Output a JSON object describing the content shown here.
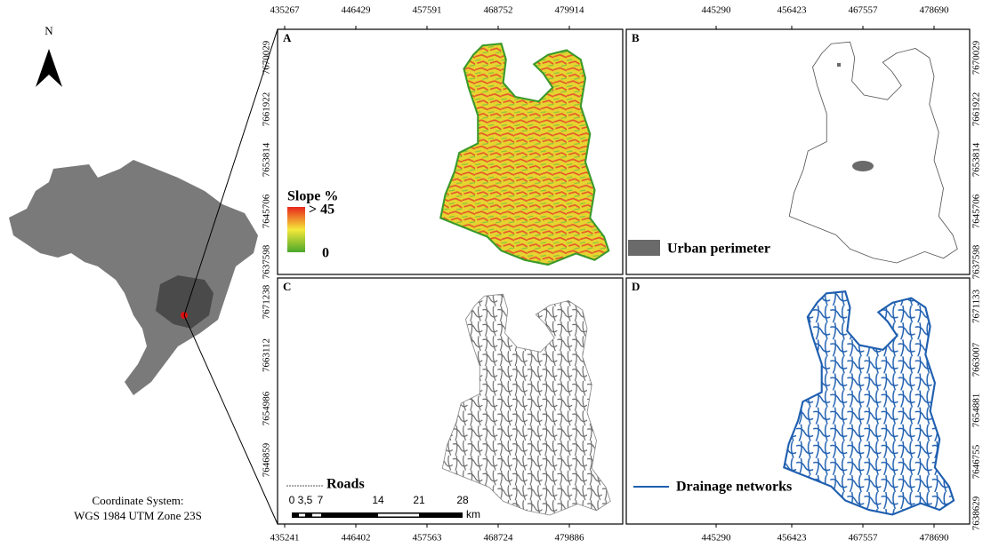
{
  "north": "N",
  "coordinate_system": [
    "Coordinate System:",
    "WGS 1984 UTM Zone 23S"
  ],
  "panels": [
    {
      "label": "A",
      "top_ticks": [
        "435267",
        "446429",
        "457591",
        "468752",
        "479914"
      ],
      "side_ticks": [
        "7670029",
        "7661922",
        "7653814",
        "7645706",
        "7637598"
      ],
      "legend": {
        "title": "Slope %",
        "max": "> 45",
        "min": "0"
      }
    },
    {
      "label": "B",
      "top_ticks": [
        "445290",
        "456423",
        "467557",
        "478690"
      ],
      "side_ticks": [
        "7670029",
        "7661922",
        "7653814",
        "7645706",
        "7637598"
      ],
      "legend": {
        "title": "Urban perimeter"
      }
    },
    {
      "label": "C",
      "bottom_ticks": [
        "435241",
        "446402",
        "457563",
        "468724",
        "479886"
      ],
      "side_ticks": [
        "7671238",
        "7663112",
        "7654986",
        "7646859"
      ],
      "legend": {
        "title": "Roads"
      }
    },
    {
      "label": "D",
      "bottom_ticks": [
        "445290",
        "456423",
        "467557",
        "478690"
      ],
      "side_ticks": [
        "7671133",
        "7663007",
        "7654881",
        "7646755",
        "7638629"
      ],
      "legend": {
        "title": "Drainage networks"
      }
    }
  ],
  "scale_bar": {
    "labels": [
      "0",
      "3,5",
      "7",
      "14",
      "21",
      "28"
    ],
    "unit": "km"
  }
}
